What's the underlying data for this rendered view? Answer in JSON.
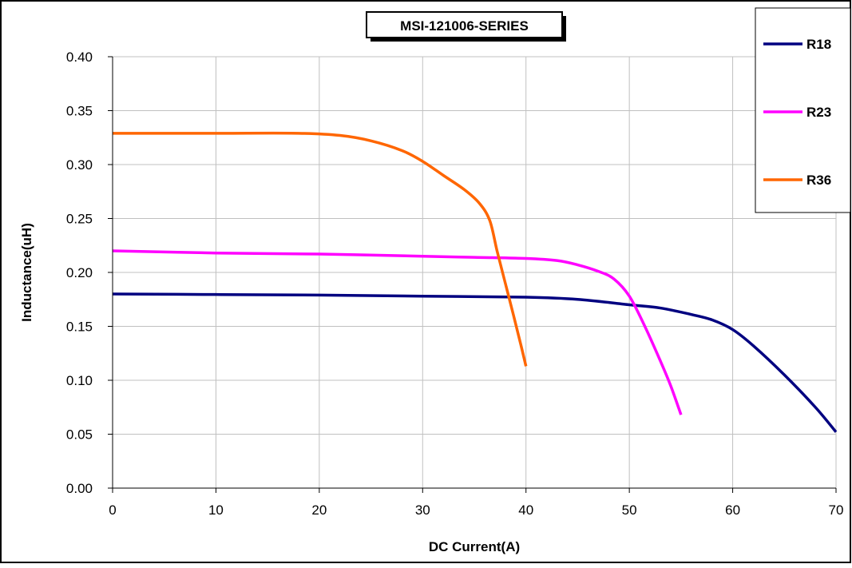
{
  "chart_data": {
    "type": "line",
    "title": "MSI-121006-SERIES",
    "xlabel": "DC Current(A)",
    "ylabel": "Inductance(uH)",
    "xlim": [
      0,
      70
    ],
    "ylim": [
      0,
      0.4
    ],
    "x_ticks": [
      0,
      10,
      20,
      30,
      40,
      50,
      60,
      70
    ],
    "x_tick_labels": [
      "0",
      "10",
      "20",
      "30",
      "40",
      "50",
      "60",
      "70"
    ],
    "y_ticks": [
      0,
      0.05,
      0.1,
      0.15,
      0.2,
      0.25,
      0.3,
      0.35,
      0.4
    ],
    "y_tick_labels": [
      "0.00",
      "0.05",
      "0.10",
      "0.15",
      "0.20",
      "0.25",
      "0.30",
      "0.35",
      "0.40"
    ],
    "grid": true,
    "legend_position": "right",
    "series": [
      {
        "name": "R18",
        "color": "#000080",
        "points": [
          [
            0,
            0.18
          ],
          [
            10,
            0.1795
          ],
          [
            20,
            0.179
          ],
          [
            30,
            0.178
          ],
          [
            40,
            0.177
          ],
          [
            45,
            0.175
          ],
          [
            50,
            0.17
          ],
          [
            53,
            0.167
          ],
          [
            56,
            0.161
          ],
          [
            58,
            0.156
          ],
          [
            60,
            0.147
          ],
          [
            62,
            0.132
          ],
          [
            65,
            0.105
          ],
          [
            68,
            0.075
          ],
          [
            70,
            0.052
          ]
        ]
      },
      {
        "name": "R23",
        "color": "#FF00FF",
        "points": [
          [
            0,
            0.22
          ],
          [
            10,
            0.218
          ],
          [
            20,
            0.217
          ],
          [
            30,
            0.215
          ],
          [
            35,
            0.214
          ],
          [
            40,
            0.213
          ],
          [
            43,
            0.211
          ],
          [
            45,
            0.207
          ],
          [
            47,
            0.201
          ],
          [
            48.5,
            0.194
          ],
          [
            50,
            0.178
          ],
          [
            51.5,
            0.15
          ],
          [
            53,
            0.118
          ],
          [
            54,
            0.095
          ],
          [
            55,
            0.068
          ]
        ]
      },
      {
        "name": "R36",
        "color": "#FF6600",
        "points": [
          [
            0,
            0.329
          ],
          [
            10,
            0.329
          ],
          [
            18,
            0.329
          ],
          [
            22,
            0.327
          ],
          [
            25,
            0.322
          ],
          [
            28,
            0.313
          ],
          [
            30,
            0.303
          ],
          [
            32,
            0.29
          ],
          [
            34,
            0.277
          ],
          [
            35.5,
            0.264
          ],
          [
            36.5,
            0.248
          ],
          [
            37.2,
            0.22
          ],
          [
            38,
            0.19
          ],
          [
            38.8,
            0.16
          ],
          [
            39.5,
            0.133
          ],
          [
            40,
            0.113
          ]
        ]
      }
    ]
  }
}
